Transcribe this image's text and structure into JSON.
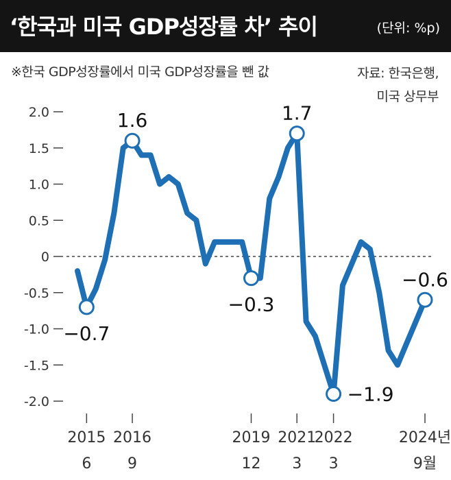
{
  "header": {
    "title": "‘한국과 미국 GDP성장률 차’ 추이",
    "unit": "(단위: %p)"
  },
  "note": "※한국 GDP성장률에서 미국 GDP성장률을 뺀 값",
  "source": [
    "자료: 한국은행,",
    "미국 상무부"
  ],
  "colors": {
    "line": "#1f6fb5",
    "title_bg": "#141414"
  },
  "chart_data": {
    "type": "line",
    "title": "‘한국과 미국 GDP성장률 차’ 추이",
    "ylabel": "%p",
    "ylim": [
      -2.0,
      2.0
    ],
    "yticks": [
      "2.0",
      "1.5",
      "1.0",
      "0.5",
      "0",
      "-0.5",
      "-1.0",
      "-1.5",
      "-2.0"
    ],
    "ytick_values": [
      2.0,
      1.5,
      1.0,
      0.5,
      0,
      -0.5,
      -1.0,
      -1.5,
      -2.0
    ],
    "zero_line": "dashed",
    "x_index_range": [
      0,
      38
    ],
    "x_ticks": [
      {
        "i": 1,
        "label1": "2015",
        "label2": "6"
      },
      {
        "i": 6,
        "label1": "2016",
        "label2": "9"
      },
      {
        "i": 19,
        "label1": "2019",
        "label2": "12"
      },
      {
        "i": 24,
        "label1": "2021",
        "label2": "3"
      },
      {
        "i": 28,
        "label1": "2022",
        "label2": "3"
      },
      {
        "i": 38,
        "label1": "2024년",
        "label2": "9월"
      }
    ],
    "series": [
      {
        "name": "한국-미국 GDP성장률 차",
        "values": [
          -0.2,
          -0.7,
          -0.45,
          -0.05,
          0.6,
          1.5,
          1.6,
          1.4,
          1.4,
          1.0,
          1.1,
          1.0,
          0.6,
          0.5,
          -0.1,
          0.2,
          0.2,
          0.2,
          0.2,
          -0.3,
          -0.3,
          0.8,
          1.1,
          1.5,
          1.7,
          -0.9,
          -1.1,
          -1.5,
          -1.9,
          -0.4,
          -0.1,
          0.2,
          0.1,
          -0.5,
          -1.3,
          -1.5,
          -1.2,
          -0.9,
          -0.6
        ]
      }
    ],
    "annotations": [
      {
        "i": 1,
        "label": "−0.7",
        "pos": "below"
      },
      {
        "i": 6,
        "label": "1.6",
        "pos": "above"
      },
      {
        "i": 19,
        "label": "−0.3",
        "pos": "below"
      },
      {
        "i": 24,
        "label": "1.7",
        "pos": "above"
      },
      {
        "i": 28,
        "label": "−1.9",
        "pos": "right"
      },
      {
        "i": 38,
        "label": "−0.6",
        "pos": "above"
      }
    ]
  }
}
